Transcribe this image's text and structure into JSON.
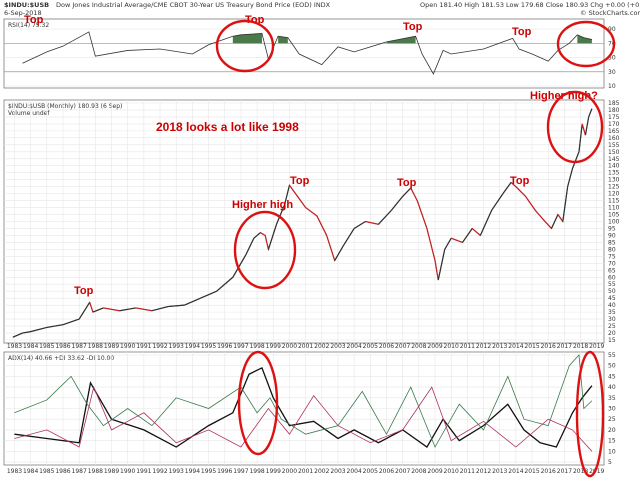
{
  "header": {
    "symbol": "$INDU:$USB",
    "description": "Dow Jones Industrial Average/CME CBOT 30-Year US Treasury Bond Price (EOD) INDX",
    "date": "6-Sep-2018",
    "ohlc": "Open 181.40  High 181.53  Low 179.68  Close 180.93  Chg +0.00 (+0.00%)",
    "watermark": "© StockCharts.com"
  },
  "chart_data": [
    {
      "type": "line",
      "title": "RSI(14) 75.32",
      "ylim": [
        10,
        100
      ],
      "y_ticks": [
        "90",
        "70",
        "50",
        "30",
        "10"
      ],
      "overbought": 70,
      "oversold": 30,
      "x": [
        1983.5,
        1985,
        1986,
        1987.6,
        1988,
        1990,
        1992,
        1994,
        1995,
        1996.5,
        1997,
        1998.3,
        1998.7,
        1999.3,
        1999.9,
        2000.6,
        2002,
        2003,
        2004,
        2006,
        2007.8,
        2008.2,
        2008.9,
        2009.5,
        2010,
        2012,
        2013.8,
        2014.2,
        2015,
        2016,
        2016.6,
        2017.3,
        2017.8,
        2018.2,
        2018.7
      ],
      "values": [
        42,
        58,
        66,
        86,
        52,
        60,
        62,
        55,
        68,
        80,
        82,
        84,
        48,
        80,
        78,
        55,
        40,
        65,
        58,
        72,
        80,
        55,
        27,
        60,
        55,
        62,
        77,
        62,
        55,
        45,
        60,
        70,
        82,
        78,
        75.32
      ]
    },
    {
      "type": "line",
      "title": "$INDU:$USB (Monthly) 180.93 (6 Sep)",
      "legend": [
        "Volume undef"
      ],
      "ylim": [
        15,
        185
      ],
      "y_ticks": [
        "185",
        "180",
        "175",
        "170",
        "165",
        "160",
        "155",
        "150",
        "145",
        "140",
        "135",
        "130",
        "125",
        "120",
        "115",
        "110",
        "105",
        "100",
        "95",
        "90",
        "85",
        "80",
        "75",
        "70",
        "65",
        "60",
        "55",
        "50",
        "45",
        "40",
        "35",
        "30",
        "25",
        "20",
        "15"
      ],
      "x_ticks": [
        "1983",
        "1984",
        "1985",
        "1986",
        "1987",
        "1988",
        "1989",
        "1990",
        "1991",
        "1992",
        "1993",
        "1994",
        "1995",
        "1996",
        "1997",
        "1998",
        "1999",
        "2000",
        "2001",
        "2002",
        "2003",
        "2004",
        "2005",
        "2006",
        "2007",
        "2008",
        "2009",
        "2010",
        "2011",
        "2012",
        "2013",
        "2014",
        "2015",
        "2016",
        "2017",
        "2018",
        "2019"
      ],
      "x": [
        1982.9,
        1983.5,
        1984,
        1985,
        1986,
        1987,
        1987.65,
        1987.85,
        1988.5,
        1989.5,
        1990.5,
        1991.5,
        1992.5,
        1993.5,
        1994.5,
        1995.5,
        1996.5,
        1997.3,
        1997.8,
        1998.2,
        1998.5,
        1998.7,
        1999.2,
        1999.7,
        2000.0,
        2000.5,
        2001.0,
        2001.7,
        2002.3,
        2002.8,
        2003.3,
        2004.0,
        2004.7,
        2005.5,
        2006.3,
        2007.0,
        2007.5,
        2007.9,
        2008.5,
        2009.0,
        2009.2,
        2009.6,
        2010.0,
        2010.7,
        2011.3,
        2011.8,
        2012.5,
        2013.2,
        2013.7,
        2014.0,
        2014.6,
        2015.2,
        2015.8,
        2016.2,
        2016.6,
        2016.9,
        2017.2,
        2017.5,
        2017.9,
        2018.1,
        2018.3,
        2018.5,
        2018.7
      ],
      "values": [
        17,
        20,
        21,
        24,
        26,
        30,
        42,
        35,
        38,
        36,
        38,
        36,
        39,
        40,
        45,
        50,
        60,
        76,
        88,
        92,
        90,
        80,
        98,
        112,
        126,
        118,
        110,
        104,
        90,
        72,
        82,
        95,
        100,
        98,
        108,
        118,
        124,
        115,
        95,
        72,
        58,
        80,
        88,
        85,
        95,
        90,
        108,
        120,
        128,
        125,
        118,
        108,
        100,
        95,
        105,
        100,
        125,
        138,
        150,
        170,
        162,
        175,
        180.93
      ]
    },
    {
      "type": "line",
      "title": "ADX(14) 40.66  +DI 33.62  -DI 10.00",
      "ylim": [
        5,
        55
      ],
      "y_ticks": [
        "55",
        "50",
        "45",
        "40",
        "35",
        "30",
        "25",
        "20",
        "15",
        "10",
        "5"
      ],
      "series": [
        {
          "name": "ADX(14)",
          "x": [
            1983,
            1985,
            1987,
            1987.7,
            1989,
            1991,
            1993,
            1995,
            1996.5,
            1997.5,
            1998.3,
            1999,
            2000,
            2001.5,
            2003,
            2004,
            2005.5,
            2007,
            2008.5,
            2009.5,
            2010.5,
            2012,
            2013.5,
            2014.5,
            2015.5,
            2016.5,
            2017.5,
            2018.1,
            2018.7
          ],
          "values": [
            18,
            16,
            14,
            42,
            25,
            20,
            12,
            22,
            28,
            46,
            49,
            35,
            22,
            24,
            16,
            20,
            14,
            20,
            12,
            25,
            15,
            22,
            32,
            20,
            14,
            12,
            28,
            35,
            40.66
          ]
        },
        {
          "name": "+DI",
          "x": [
            1983,
            1985,
            1986.5,
            1987.5,
            1988.5,
            1990,
            1991.5,
            1993,
            1995,
            1997,
            1998,
            1998.8,
            1999.5,
            2001,
            2003,
            2004.5,
            2006,
            2007.5,
            2009,
            2010.5,
            2012,
            2013.5,
            2014.5,
            2016,
            2017.3,
            2017.9,
            2018.2,
            2018.7
          ],
          "values": [
            28,
            34,
            45,
            32,
            22,
            30,
            22,
            35,
            30,
            40,
            28,
            35,
            25,
            18,
            22,
            38,
            18,
            40,
            12,
            32,
            20,
            45,
            25,
            22,
            50,
            55,
            30,
            33.62
          ]
        },
        {
          "name": "-DI",
          "x": [
            1983,
            1985,
            1987,
            1987.9,
            1989,
            1991,
            1993,
            1995,
            1997,
            1998.7,
            2000,
            2001.5,
            2003,
            2005,
            2007,
            2008.8,
            2010,
            2012,
            2014,
            2016,
            2017.5,
            2018.1,
            2018.7
          ],
          "values": [
            16,
            20,
            12,
            40,
            20,
            28,
            14,
            20,
            12,
            30,
            18,
            36,
            22,
            14,
            20,
            40,
            15,
            24,
            12,
            25,
            20,
            15,
            10.0
          ]
        }
      ]
    }
  ],
  "annotations": {
    "main_headline": "2018 looks a lot like 1998",
    "higher_high_q": "Higher high?",
    "higher_high": "Higher high",
    "top_1987": "Top",
    "top_2000": "Top",
    "top_2007": "Top",
    "top_2014": "Top",
    "rsi_top_1": "Top",
    "rsi_top_2": "Top",
    "rsi_top_3": "Top",
    "rsi_top_4": "Top"
  },
  "colors": {
    "price_line": "#333333",
    "candle_down": "#cc2222",
    "rsi_overbought_fill": "#4a7a4a",
    "rsi_oversold_fill": "#8b2a2a",
    "adx": "#111111",
    "plus_di": "#3a7a4a",
    "minus_di": "#b03060",
    "annotation": "#cc0000"
  }
}
